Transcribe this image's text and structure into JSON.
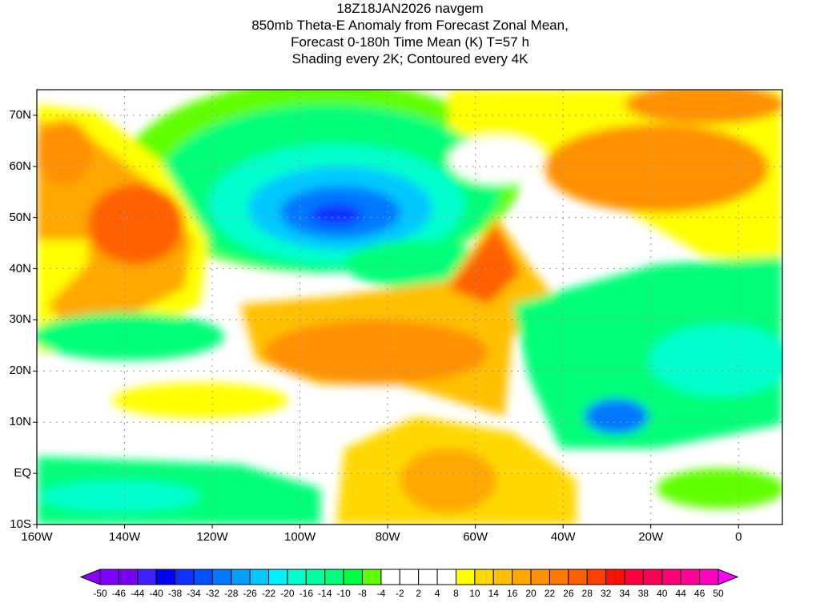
{
  "title": {
    "line1": "18Z18JAN2026 navgem",
    "line2": "850mb Theta-E Anomaly from Forecast Zonal Mean,",
    "line3": "Forecast 0-180h Time Mean (K) T=57 h",
    "line4": "Shading every 2K; Contoured every 4K"
  },
  "axes": {
    "lat_labels": [
      "70N",
      "60N",
      "50N",
      "40N",
      "30N",
      "20N",
      "10N",
      "EQ",
      "10S"
    ],
    "lat_values": [
      70,
      60,
      50,
      40,
      30,
      20,
      10,
      0,
      -10
    ],
    "lon_labels": [
      "160W",
      "140W",
      "120W",
      "100W",
      "80W",
      "60W",
      "40W",
      "20W",
      "0"
    ],
    "lon_values": [
      -160,
      -140,
      -120,
      -100,
      -80,
      -60,
      -40,
      -20,
      0
    ],
    "lon_range": [
      -160,
      10
    ],
    "lat_range": [
      -10,
      75
    ]
  },
  "colorbar": {
    "labels": [
      "-50",
      "-46",
      "-44",
      "-40",
      "-38",
      "-34",
      "-32",
      "-28",
      "-26",
      "-22",
      "-20",
      "-16",
      "-14",
      "-10",
      "-8",
      "-4",
      "-2",
      "2",
      "4",
      "8",
      "10",
      "14",
      "16",
      "20",
      "22",
      "26",
      "28",
      "32",
      "34",
      "38",
      "40",
      "44",
      "46",
      "50"
    ],
    "colors": [
      "#8000ff",
      "#7800f0",
      "#4020ff",
      "#0000ff",
      "#1030ff",
      "#0050ff",
      "#0078ff",
      "#00a0ff",
      "#00c8ff",
      "#00f0ff",
      "#00ffcc",
      "#00ffa0",
      "#00ff78",
      "#00ff40",
      "#60ff00",
      "#ffffff",
      "#ffffff",
      "#ffffff",
      "#ffffff",
      "#ffff00",
      "#ffd800",
      "#ffc000",
      "#ffa800",
      "#ff9000",
      "#ff7800",
      "#ff6000",
      "#ff4000",
      "#ff1000",
      "#ff0040",
      "#ff0058",
      "#ff0078",
      "#ff0098",
      "#ff00c0"
    ],
    "low_arrow_color": "#8800ff",
    "high_arrow_color": "#ff00ff"
  }
}
